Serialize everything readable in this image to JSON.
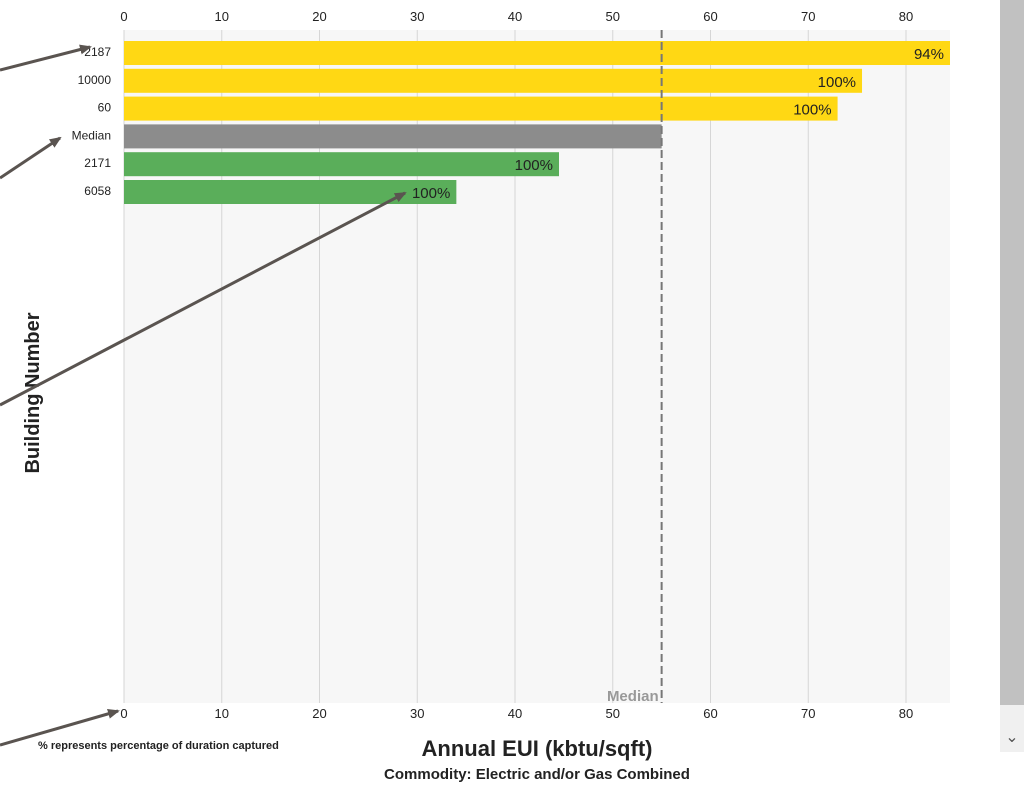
{
  "chart_data": {
    "type": "bar",
    "orientation": "horizontal",
    "categories": [
      "2187",
      "10000",
      "60",
      "Median",
      "2171",
      "6058"
    ],
    "values": [
      84.5,
      75.5,
      73,
      55,
      44.5,
      34
    ],
    "bar_labels": [
      "94%",
      "100%",
      "100%",
      "",
      "100%",
      "100%"
    ],
    "bar_colors": [
      "#FFD814",
      "#FFD814",
      "#FFD814",
      "#8C8C8C",
      "#5AAE5A",
      "#5AAE5A"
    ],
    "xlim": [
      0,
      84.5
    ],
    "xticks": [
      "0",
      "10",
      "20",
      "30",
      "40",
      "50",
      "60",
      "70",
      "80"
    ],
    "xtick_values": [
      0,
      10,
      20,
      30,
      40,
      50,
      60,
      70,
      80
    ],
    "median_value": 55,
    "median_label": "Median",
    "xlabel": "Annual EUI (kbtu/sqft)",
    "subtitle": "Commodity: Electric and/or Gas Combined",
    "ylabel": "Building Number",
    "footnote": "% represents percentage of duration captured",
    "grid": true,
    "colors": {
      "plot_bg": "#F7F7F7",
      "grid": "#D6D6D6",
      "median_line": "#777777",
      "arrow": "#5A5450"
    }
  },
  "scrollbar": {
    "down_icon": "chevron-down-icon",
    "down_glyph": "⌄"
  }
}
